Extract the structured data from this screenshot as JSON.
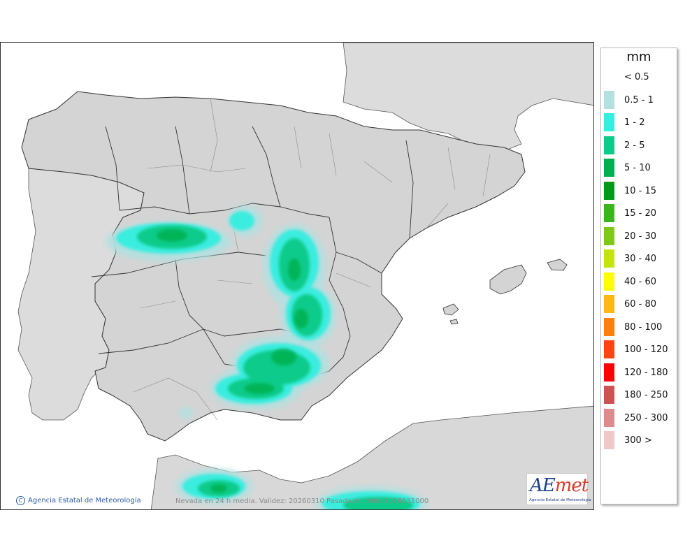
{
  "legend": {
    "unit": "mm",
    "items": [
      {
        "label": "< 0.5",
        "color": "#ffffff"
      },
      {
        "label": "0.5 - 1",
        "color": "#b3e0e0"
      },
      {
        "label": "1 - 2",
        "color": "#36eee0"
      },
      {
        "label": "2 - 5",
        "color": "#0ecb8a"
      },
      {
        "label": "5 - 10",
        "color": "#00b050"
      },
      {
        "label": "10 - 15",
        "color": "#009a1a"
      },
      {
        "label": "15 - 20",
        "color": "#3cb41c"
      },
      {
        "label": "20 - 30",
        "color": "#7ec817"
      },
      {
        "label": "30 - 40",
        "color": "#c4e412"
      },
      {
        "label": "40 - 60",
        "color": "#ffff00"
      },
      {
        "label": "60 - 80",
        "color": "#ffb617"
      },
      {
        "label": "80 - 100",
        "color": "#ff7f0e"
      },
      {
        "label": "100 - 120",
        "color": "#ff4612"
      },
      {
        "label": "120 - 180",
        "color": "#ff0000"
      },
      {
        "label": "180 - 250",
        "color": "#cd5252"
      },
      {
        "label": "250 - 300",
        "color": "#dc8c8c"
      },
      {
        "label": "300 >",
        "color": "#efc8c8"
      }
    ]
  },
  "map": {
    "credit": "Agencia Estatal de Meteorología",
    "footnote": "Nevada en 24 h media. Validez: 20260310 Pasada modelo: 2026031000",
    "land_color": "#d8d8d8",
    "sea_color": "#ffffff"
  },
  "logo": {
    "word_a": "AE",
    "word_b": "met",
    "subtitle": "Agencia Estatal de Meteorología"
  }
}
